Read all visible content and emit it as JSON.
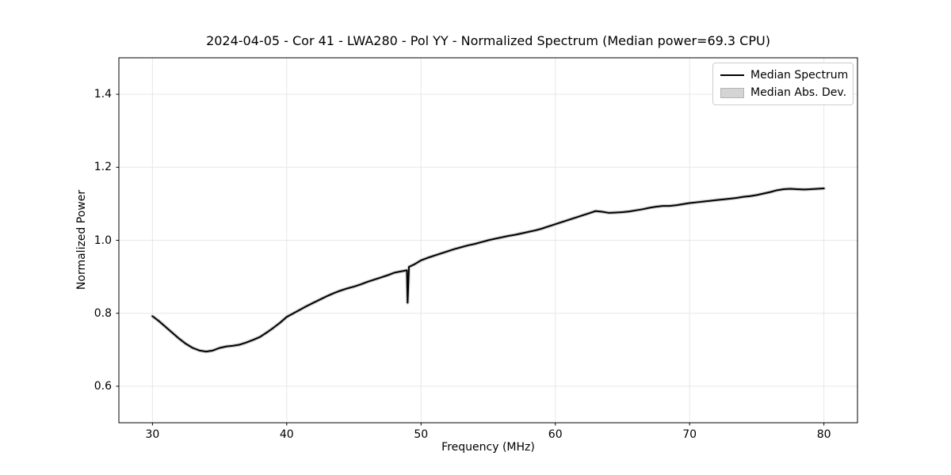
{
  "figure": {
    "title": "2024-04-05 - Cor 41 - LWA280 - Pol YY - Normalized Spectrum (Median power=69.3 CPU)"
  },
  "colors": {
    "background": "#ffffff",
    "grid": "#e7e7e7",
    "spine": "#000000",
    "tick": "#000000",
    "median_line": "#000000",
    "mad_band": "#d0d0d0",
    "legend_border": "#cccccc",
    "legend_patch_fill": "#d4d4d4"
  },
  "chart_data": {
    "type": "line",
    "title": "2024-04-05 - Cor 41 - LWA280 - Pol YY - Normalized Spectrum (Median power=69.3 CPU)",
    "xlabel": "Frequency (MHz)",
    "ylabel": "Normalized Power",
    "xlim": [
      27.5,
      82.5
    ],
    "ylim": [
      0.5,
      1.5
    ],
    "xticks": [
      30,
      40,
      50,
      60,
      70,
      80
    ],
    "yticks": [
      0.6,
      0.8,
      1.0,
      1.2,
      1.4
    ],
    "grid": true,
    "legend": {
      "position": "upper right",
      "entries": [
        {
          "label": "Median Spectrum",
          "swatch": "line",
          "color": "#000000"
        },
        {
          "label": "Median Abs. Dev.",
          "swatch": "patch",
          "color": "#d4d4d4"
        }
      ]
    },
    "series": [
      {
        "name": "Median Spectrum",
        "color": "#000000",
        "points": [
          [
            30.0,
            0.792
          ],
          [
            30.5,
            0.778
          ],
          [
            31.0,
            0.762
          ],
          [
            31.5,
            0.746
          ],
          [
            32.0,
            0.73
          ],
          [
            32.5,
            0.716
          ],
          [
            33.0,
            0.705
          ],
          [
            33.5,
            0.698
          ],
          [
            34.0,
            0.695
          ],
          [
            34.5,
            0.698
          ],
          [
            35.0,
            0.705
          ],
          [
            35.5,
            0.709
          ],
          [
            36.0,
            0.711
          ],
          [
            36.5,
            0.714
          ],
          [
            37.0,
            0.72
          ],
          [
            37.5,
            0.727
          ],
          [
            38.0,
            0.735
          ],
          [
            38.5,
            0.747
          ],
          [
            39.0,
            0.76
          ],
          [
            39.5,
            0.774
          ],
          [
            40.0,
            0.79
          ],
          [
            40.5,
            0.8
          ],
          [
            41.0,
            0.81
          ],
          [
            41.5,
            0.82
          ],
          [
            42.0,
            0.829
          ],
          [
            42.5,
            0.838
          ],
          [
            43.0,
            0.847
          ],
          [
            43.5,
            0.855
          ],
          [
            44.0,
            0.862
          ],
          [
            44.5,
            0.868
          ],
          [
            45.0,
            0.873
          ],
          [
            45.5,
            0.879
          ],
          [
            46.0,
            0.886
          ],
          [
            46.5,
            0.892
          ],
          [
            47.0,
            0.898
          ],
          [
            47.5,
            0.904
          ],
          [
            48.0,
            0.911
          ],
          [
            48.4,
            0.914
          ],
          [
            48.7,
            0.916
          ],
          [
            48.95,
            0.918
          ],
          [
            49.0,
            0.829
          ],
          [
            49.1,
            0.927
          ],
          [
            49.5,
            0.934
          ],
          [
            50.0,
            0.945
          ],
          [
            50.5,
            0.952
          ],
          [
            51.0,
            0.958
          ],
          [
            51.5,
            0.964
          ],
          [
            52.0,
            0.97
          ],
          [
            52.5,
            0.976
          ],
          [
            53.0,
            0.981
          ],
          [
            53.5,
            0.986
          ],
          [
            54.0,
            0.99
          ],
          [
            54.5,
            0.995
          ],
          [
            55.0,
            1.0
          ],
          [
            55.5,
            1.004
          ],
          [
            56.0,
            1.008
          ],
          [
            56.5,
            1.012
          ],
          [
            57.0,
            1.015
          ],
          [
            57.5,
            1.019
          ],
          [
            58.0,
            1.023
          ],
          [
            58.5,
            1.027
          ],
          [
            59.0,
            1.032
          ],
          [
            59.5,
            1.038
          ],
          [
            60.0,
            1.044
          ],
          [
            60.5,
            1.05
          ],
          [
            61.0,
            1.056
          ],
          [
            61.5,
            1.062
          ],
          [
            62.0,
            1.068
          ],
          [
            62.5,
            1.074
          ],
          [
            63.0,
            1.08
          ],
          [
            63.5,
            1.078
          ],
          [
            64.0,
            1.075
          ],
          [
            64.5,
            1.076
          ],
          [
            65.0,
            1.077
          ],
          [
            65.5,
            1.079
          ],
          [
            66.0,
            1.082
          ],
          [
            66.5,
            1.085
          ],
          [
            67.0,
            1.089
          ],
          [
            67.5,
            1.092
          ],
          [
            68.0,
            1.094
          ],
          [
            68.5,
            1.094
          ],
          [
            69.0,
            1.096
          ],
          [
            69.5,
            1.099
          ],
          [
            70.0,
            1.102
          ],
          [
            70.5,
            1.104
          ],
          [
            71.0,
            1.106
          ],
          [
            71.5,
            1.108
          ],
          [
            72.0,
            1.11
          ],
          [
            72.5,
            1.112
          ],
          [
            73.0,
            1.114
          ],
          [
            73.5,
            1.116
          ],
          [
            74.0,
            1.119
          ],
          [
            74.5,
            1.121
          ],
          [
            75.0,
            1.124
          ],
          [
            75.5,
            1.128
          ],
          [
            76.0,
            1.132
          ],
          [
            76.5,
            1.137
          ],
          [
            77.0,
            1.14
          ],
          [
            77.5,
            1.141
          ],
          [
            78.0,
            1.14
          ],
          [
            78.5,
            1.139
          ],
          [
            79.0,
            1.14
          ],
          [
            79.5,
            1.141
          ],
          [
            80.0,
            1.142
          ]
        ]
      }
    ],
    "mad_band_halfwidth": 0.003
  },
  "layout_note": ""
}
